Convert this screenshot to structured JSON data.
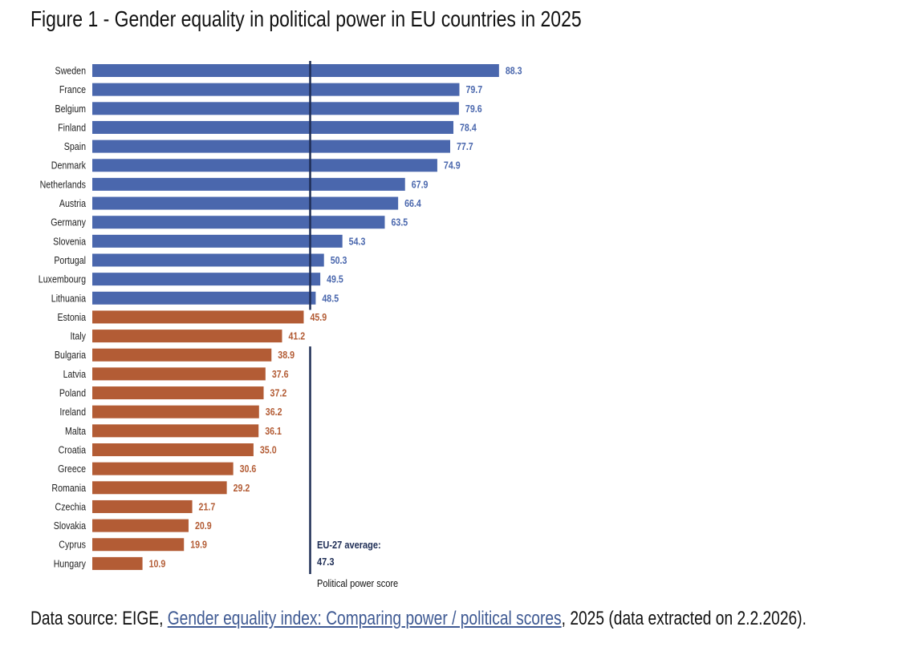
{
  "chart_data": {
    "type": "bar",
    "orientation": "horizontal",
    "title": "Figure 1 - Gender equality in political power in EU countries in 2025",
    "xlabel": "Political power score",
    "ylabel": "",
    "xlim": [
      0,
      100
    ],
    "grid": false,
    "categories": [
      "Sweden",
      "France",
      "Belgium",
      "Finland",
      "Spain",
      "Denmark",
      "Netherlands",
      "Austria",
      "Germany",
      "Slovenia",
      "Portugal",
      "Luxembourg",
      "Lithuania",
      "Estonia",
      "Italy",
      "Bulgaria",
      "Latvia",
      "Poland",
      "Ireland",
      "Malta",
      "Croatia",
      "Greece",
      "Romania",
      "Czechia",
      "Slovakia",
      "Cyprus",
      "Hungary"
    ],
    "values": [
      88.3,
      79.7,
      79.6,
      78.4,
      77.7,
      74.9,
      67.9,
      66.4,
      63.5,
      54.3,
      50.3,
      49.5,
      48.5,
      45.9,
      41.2,
      38.9,
      37.6,
      37.2,
      36.2,
      36.1,
      35.0,
      30.6,
      29.2,
      21.7,
      20.9,
      19.9,
      10.9
    ],
    "value_labels": [
      "88.3",
      "79.7",
      "79.6",
      "78.4",
      "77.7",
      "74.9",
      "67.9",
      "66.4",
      "63.5",
      "54.3",
      "50.3",
      "49.5",
      "48.5",
      "45.9",
      "41.2",
      "38.9",
      "37.6",
      "37.2",
      "36.2",
      "36.1",
      "35.0",
      "30.6",
      "29.2",
      "21.7",
      "20.9",
      "19.9",
      "10.9"
    ],
    "reference_line": {
      "label": "EU-27 average:",
      "value": 47.3,
      "value_label": "47.3"
    },
    "colors": {
      "above_average": "#4a67ad",
      "below_average": "#b35c35",
      "reference_line": "#1e2d55"
    }
  },
  "source": {
    "prefix": "Data source: EIGE, ",
    "link_text": "Gender equality index: Comparing power / political scores",
    "suffix": ", 2025 (data extracted on 2.2.2026)."
  }
}
